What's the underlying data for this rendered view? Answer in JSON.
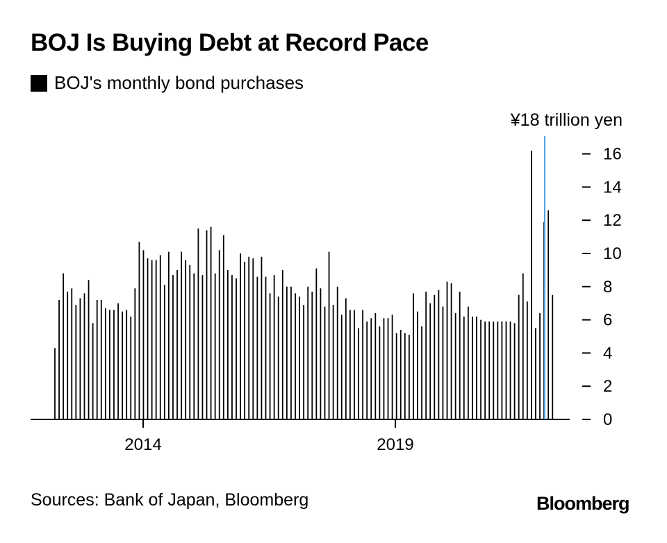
{
  "header": {
    "title": "BOJ Is Buying Debt at Record Pace"
  },
  "legend": {
    "label": "BOJ's monthly bond purchases"
  },
  "footer": {
    "sources": "Sources: Bank of Japan, Bloomberg",
    "logo": "Bloomberg"
  },
  "colors": {
    "bar": "#000000",
    "marker": "#4aa3df"
  },
  "chart_data": {
    "type": "bar",
    "series": [
      {
        "name": "BOJ's monthly bond purchases",
        "values": [
          4.3,
          7.2,
          8.8,
          7.7,
          7.9,
          6.9,
          7.3,
          7.6,
          8.4,
          5.8,
          7.2,
          7.2,
          6.7,
          6.6,
          6.6,
          7.0,
          6.5,
          6.6,
          6.2,
          7.9,
          10.7,
          10.2,
          9.7,
          9.6,
          9.6,
          9.9,
          8.1,
          10.1,
          8.7,
          9.0,
          10.1,
          9.6,
          9.3,
          8.8,
          11.5,
          8.7,
          11.4,
          11.6,
          8.8,
          10.2,
          11.1,
          9.0,
          8.7,
          8.5,
          10.0,
          9.5,
          9.8,
          9.7,
          8.6,
          9.8,
          8.6,
          7.6,
          8.7,
          7.4,
          9.0,
          8.0,
          8.0,
          7.6,
          7.4,
          6.9,
          8.0,
          7.7,
          9.1,
          7.9,
          6.8,
          10.1,
          6.9,
          8.0,
          6.3,
          7.3,
          6.6,
          6.6,
          5.5,
          6.6,
          5.9,
          6.1,
          6.4,
          5.6,
          6.1,
          6.1,
          6.3,
          5.2,
          5.4,
          5.2,
          5.1,
          7.6,
          6.5,
          5.6,
          7.7,
          7.0,
          7.5,
          7.8,
          6.8,
          8.3,
          8.2,
          6.4,
          7.7,
          6.2,
          6.8,
          6.2,
          6.2,
          6.0,
          5.9,
          5.9,
          5.9,
          5.9,
          5.9,
          5.9,
          5.9,
          5.8,
          7.5,
          8.8,
          7.1,
          16.2,
          5.5,
          6.4,
          11.9,
          12.6,
          7.5
        ],
        "color": "#000000"
      }
    ],
    "x_ticks": [
      "2014",
      "2019"
    ],
    "y_ticks": [
      "0",
      "2",
      "4",
      "6",
      "8",
      "10",
      "12",
      "14",
      "16"
    ],
    "y_unit_label": "¥18 trillion yen",
    "ylim": [
      0,
      18
    ],
    "grid": false,
    "legend_position": "top-left"
  }
}
